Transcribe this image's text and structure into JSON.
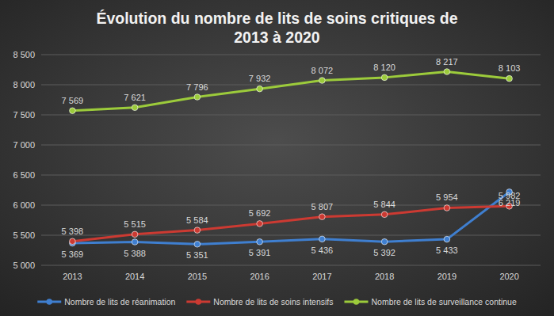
{
  "chart_data": {
    "type": "line",
    "title": "Évolution du nombre de lits de soins critiques de 2013 à 2020",
    "categories": [
      "2013",
      "2014",
      "2015",
      "2016",
      "2017",
      "2018",
      "2019",
      "2020"
    ],
    "series": [
      {
        "name": "Nombre de lits de réanimation",
        "color": "#3f7fd0",
        "marker": "circle",
        "values": [
          5369,
          5388,
          5351,
          5391,
          5436,
          5392,
          5433,
          6219
        ],
        "value_labels": [
          "5 369",
          "5 388",
          "5 351",
          "5 391",
          "5 436",
          "5 392",
          "5 433",
          "6 219"
        ]
      },
      {
        "name": "Nombre de lits de soins intensifs",
        "color": "#cc3a32",
        "marker": "circle",
        "values": [
          5398,
          5515,
          5584,
          5692,
          5807,
          5844,
          5954,
          5982
        ],
        "value_labels": [
          "5 398",
          "5 515",
          "5 584",
          "5 692",
          "5 807",
          "5 844",
          "5 954",
          "5 982"
        ]
      },
      {
        "name": "Nombre de lits de surveillance continue",
        "color": "#9ccb3b",
        "marker": "circle",
        "values": [
          7569,
          7621,
          7796,
          7932,
          8072,
          8120,
          8217,
          8103
        ],
        "value_labels": [
          "7 569",
          "7 621",
          "7 796",
          "7 932",
          "8 072",
          "8 120",
          "8 217",
          "8 103"
        ]
      }
    ],
    "ylim": [
      5000,
      8500
    ],
    "yticks": [
      {
        "value": 5000,
        "label": "5 000"
      },
      {
        "value": 5500,
        "label": "5 500"
      },
      {
        "value": 6000,
        "label": "6 000"
      },
      {
        "value": 6500,
        "label": "6 500"
      },
      {
        "value": 7000,
        "label": "7 000"
      },
      {
        "value": 7500,
        "label": "7 500"
      },
      {
        "value": 8000,
        "label": "8 000"
      },
      {
        "value": 8500,
        "label": "8 500"
      }
    ],
    "grid": true,
    "data_labels": true,
    "legend": "bottom"
  }
}
